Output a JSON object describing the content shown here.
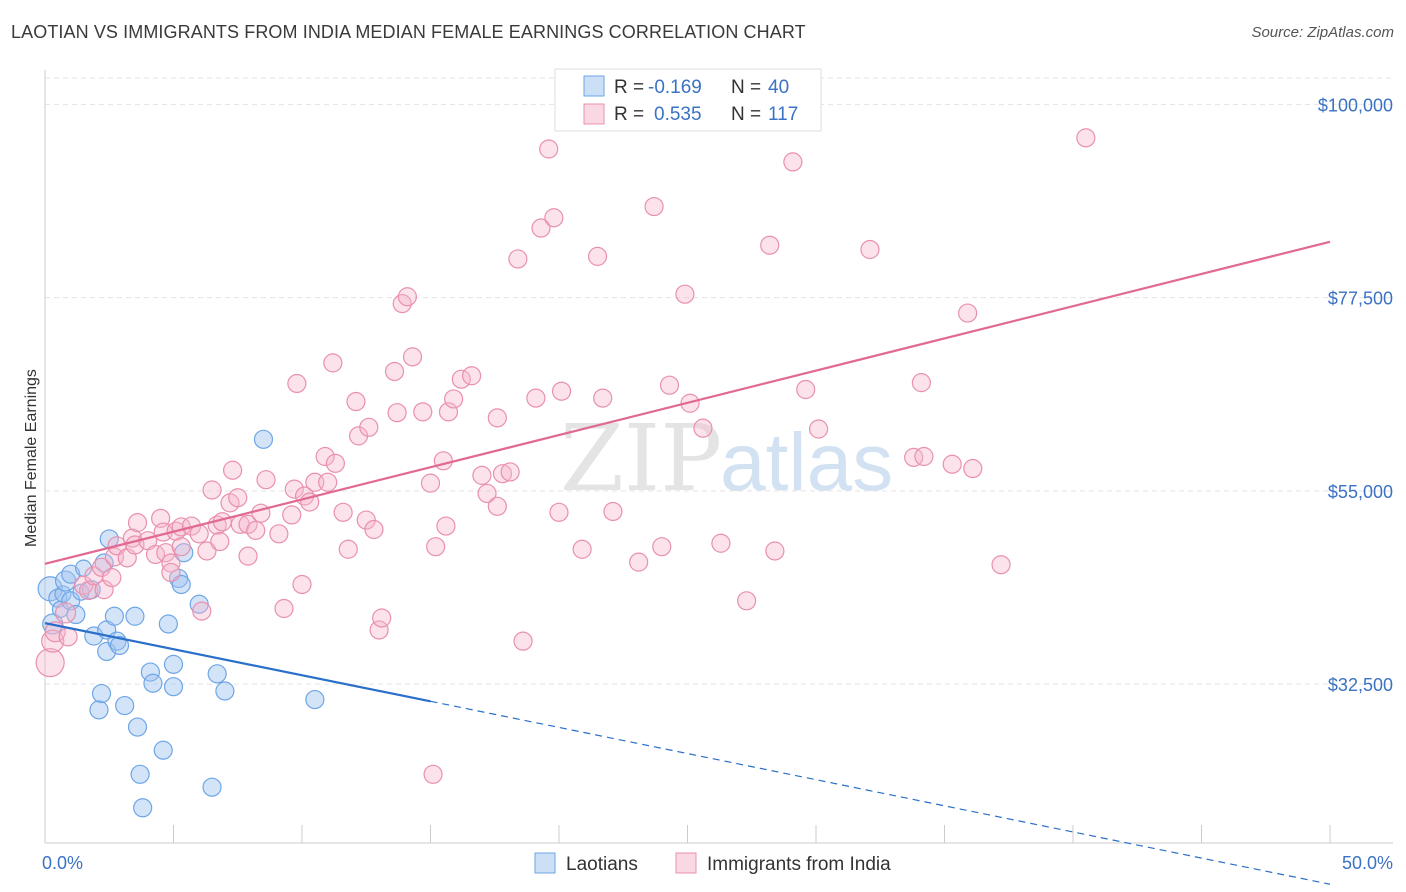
{
  "title": "LAOTIAN VS IMMIGRANTS FROM INDIA MEDIAN FEMALE EARNINGS CORRELATION CHART",
  "source": "Source: ZipAtlas.com",
  "watermark": {
    "zip": "ZIP",
    "atlas": "atlas"
  },
  "chart_data": {
    "type": "scatter",
    "ylabel": "Median Female Earnings",
    "xlim": [
      0,
      50
    ],
    "ylim": [
      14000,
      104000
    ],
    "x_tick_labels": {
      "left": "0.0%",
      "right": "50.0%"
    },
    "y_ticks": [
      {
        "value": 32500,
        "label": "$32,500"
      },
      {
        "value": 55000,
        "label": "$55,000"
      },
      {
        "value": 77500,
        "label": "$77,500"
      },
      {
        "value": 100000,
        "label": "$100,000"
      }
    ],
    "grid": true,
    "legend_top": [
      {
        "r_label": "R =",
        "r_value": "-0.169",
        "n_label": "N =",
        "n_value": "40"
      },
      {
        "r_label": "R =",
        "r_value": "0.535",
        "n_label": "N =",
        "n_value": "117"
      }
    ],
    "series": [
      {
        "name": "Laotians",
        "color": "#6ea6e6",
        "fill": "rgba(160,196,240,0.45)",
        "trend_color": "#2a6fc9",
        "trend": {
          "x0": 0,
          "y0": 39600,
          "x1": 15,
          "y1": 30500,
          "x_dash_end": 50,
          "y_dash_end": 9200
        },
        "points": [
          [
            0.2,
            43600,
            12
          ],
          [
            0.3,
            39500,
            10
          ],
          [
            0.5,
            42500,
            9
          ],
          [
            0.6,
            41200,
            8
          ],
          [
            0.7,
            43000,
            8
          ],
          [
            0.8,
            44500,
            10
          ],
          [
            1.0,
            45300,
            9
          ],
          [
            1.0,
            42200,
            9
          ],
          [
            1.2,
            40600,
            9
          ],
          [
            1.4,
            43200,
            8
          ],
          [
            1.5,
            46000,
            8
          ],
          [
            1.8,
            43500,
            9
          ],
          [
            1.9,
            38100,
            9
          ],
          [
            2.1,
            29500,
            9
          ],
          [
            2.2,
            31400,
            9
          ],
          [
            2.3,
            46600,
            9
          ],
          [
            2.4,
            38800,
            9
          ],
          [
            2.4,
            36300,
            9
          ],
          [
            2.5,
            49400,
            9
          ],
          [
            2.7,
            40400,
            9
          ],
          [
            2.8,
            37500,
            9
          ],
          [
            2.9,
            37000,
            9
          ],
          [
            3.1,
            30000,
            9
          ],
          [
            3.5,
            40400,
            9
          ],
          [
            3.6,
            27500,
            9
          ],
          [
            3.7,
            22000,
            9
          ],
          [
            3.8,
            18100,
            9
          ],
          [
            4.1,
            33900,
            9
          ],
          [
            4.2,
            32600,
            9
          ],
          [
            4.6,
            24800,
            9
          ],
          [
            4.8,
            39500,
            9
          ],
          [
            5.0,
            34800,
            9
          ],
          [
            5.0,
            32200,
            9
          ],
          [
            5.2,
            44800,
            9
          ],
          [
            5.3,
            44100,
            9
          ],
          [
            5.4,
            47800,
            9
          ],
          [
            6.0,
            41800,
            9
          ],
          [
            6.5,
            20500,
            9
          ],
          [
            6.7,
            33700,
            9
          ],
          [
            7.0,
            31700,
            9
          ],
          [
            8.5,
            61000,
            9
          ],
          [
            10.5,
            30700,
            9
          ]
        ]
      },
      {
        "name": "Immigrants from India",
        "color": "#e990ae",
        "fill": "rgba(244,182,204,0.40)",
        "trend_color": "#e06a92",
        "trend": {
          "x0": 0,
          "y0": 46500,
          "x1": 50,
          "y1": 84000
        },
        "points": [
          [
            0.2,
            35000,
            14
          ],
          [
            0.3,
            37500,
            11
          ],
          [
            0.4,
            38600,
            10
          ],
          [
            0.8,
            40800,
            10
          ],
          [
            0.9,
            38000,
            9
          ],
          [
            1.5,
            44000,
            9
          ],
          [
            1.7,
            43400,
            9
          ],
          [
            1.9,
            45100,
            9
          ],
          [
            2.2,
            46100,
            9
          ],
          [
            2.3,
            43500,
            9
          ],
          [
            2.6,
            44900,
            9
          ],
          [
            2.7,
            47300,
            9
          ],
          [
            2.8,
            48600,
            9
          ],
          [
            3.2,
            47200,
            9
          ],
          [
            3.4,
            49500,
            9
          ],
          [
            3.5,
            48700,
            9
          ],
          [
            3.6,
            51300,
            9
          ],
          [
            4.0,
            49200,
            9
          ],
          [
            4.3,
            47600,
            9
          ],
          [
            4.5,
            51800,
            9
          ],
          [
            4.6,
            50200,
            9
          ],
          [
            4.7,
            47800,
            9
          ],
          [
            4.9,
            46600,
            9
          ],
          [
            4.9,
            45500,
            9
          ],
          [
            5.1,
            50300,
            9
          ],
          [
            5.3,
            48500,
            9
          ],
          [
            5.3,
            50800,
            9
          ],
          [
            5.7,
            50900,
            9
          ],
          [
            6.0,
            50000,
            9
          ],
          [
            6.1,
            41000,
            9
          ],
          [
            6.3,
            48000,
            9
          ],
          [
            6.5,
            55100,
            9
          ],
          [
            6.7,
            51000,
            9
          ],
          [
            6.8,
            49100,
            9
          ],
          [
            6.9,
            51400,
            9
          ],
          [
            7.2,
            53600,
            9
          ],
          [
            7.3,
            57400,
            9
          ],
          [
            7.5,
            54200,
            9
          ],
          [
            7.6,
            51100,
            9
          ],
          [
            7.9,
            51100,
            9
          ],
          [
            7.9,
            47400,
            9
          ],
          [
            8.2,
            50400,
            9
          ],
          [
            8.4,
            52400,
            9
          ],
          [
            8.6,
            56300,
            9
          ],
          [
            9.1,
            50000,
            9
          ],
          [
            9.3,
            41300,
            9
          ],
          [
            9.6,
            52200,
            9
          ],
          [
            9.7,
            55200,
            9
          ],
          [
            9.8,
            67500,
            9
          ],
          [
            10.0,
            44100,
            9
          ],
          [
            10.1,
            54400,
            9
          ],
          [
            10.3,
            53700,
            9
          ],
          [
            10.5,
            56000,
            9
          ],
          [
            10.9,
            59000,
            9
          ],
          [
            11.0,
            56000,
            9
          ],
          [
            11.2,
            69900,
            9
          ],
          [
            11.3,
            58200,
            9
          ],
          [
            11.6,
            52500,
            9
          ],
          [
            11.8,
            48200,
            9
          ],
          [
            12.1,
            65400,
            9
          ],
          [
            12.2,
            61400,
            9
          ],
          [
            12.5,
            51600,
            9
          ],
          [
            12.6,
            62400,
            9
          ],
          [
            12.8,
            50500,
            9
          ],
          [
            13.0,
            38800,
            9
          ],
          [
            13.1,
            40200,
            9
          ],
          [
            13.6,
            68900,
            9
          ],
          [
            13.7,
            64100,
            9
          ],
          [
            13.9,
            76800,
            9
          ],
          [
            14.1,
            77600,
            9
          ],
          [
            14.3,
            70600,
            9
          ],
          [
            14.7,
            64200,
            9
          ],
          [
            15.0,
            55900,
            9
          ],
          [
            15.1,
            22000,
            9
          ],
          [
            15.2,
            48500,
            9
          ],
          [
            15.5,
            58500,
            9
          ],
          [
            15.6,
            50900,
            9
          ],
          [
            15.7,
            64200,
            9
          ],
          [
            15.9,
            65700,
            9
          ],
          [
            16.2,
            68000,
            9
          ],
          [
            16.6,
            68400,
            9
          ],
          [
            17.0,
            56800,
            9
          ],
          [
            17.2,
            54700,
            9
          ],
          [
            17.6,
            63500,
            9
          ],
          [
            17.6,
            53200,
            9
          ],
          [
            17.8,
            57000,
            9
          ],
          [
            18.1,
            57200,
            9
          ],
          [
            18.4,
            82000,
            9
          ],
          [
            18.6,
            37500,
            9
          ],
          [
            19.1,
            65800,
            9
          ],
          [
            19.3,
            85600,
            9
          ],
          [
            19.6,
            94800,
            9
          ],
          [
            19.8,
            86800,
            9
          ],
          [
            20.0,
            52500,
            9
          ],
          [
            20.1,
            66600,
            9
          ],
          [
            20.9,
            48200,
            9
          ],
          [
            21.5,
            82300,
            9
          ],
          [
            21.7,
            65800,
            9
          ],
          [
            22.1,
            52600,
            9
          ],
          [
            23.1,
            46700,
            9
          ],
          [
            23.7,
            88100,
            9
          ],
          [
            24.0,
            48500,
            9
          ],
          [
            24.3,
            67300,
            9
          ],
          [
            24.9,
            77900,
            9
          ],
          [
            25.1,
            65200,
            9
          ],
          [
            25.6,
            62300,
            9
          ],
          [
            26.3,
            48900,
            9
          ],
          [
            27.3,
            42200,
            9
          ],
          [
            28.2,
            83600,
            9
          ],
          [
            28.4,
            48000,
            9
          ],
          [
            29.1,
            93300,
            9
          ],
          [
            29.6,
            66800,
            9
          ],
          [
            30.1,
            62200,
            9
          ],
          [
            32.1,
            83100,
            9
          ],
          [
            33.8,
            58900,
            9
          ],
          [
            34.1,
            67600,
            9
          ],
          [
            34.2,
            59000,
            9
          ],
          [
            35.3,
            58100,
            9
          ],
          [
            35.9,
            75700,
            9
          ],
          [
            36.1,
            57600,
            9
          ],
          [
            37.2,
            46400,
            9
          ],
          [
            40.5,
            96100,
            9
          ]
        ]
      }
    ]
  }
}
